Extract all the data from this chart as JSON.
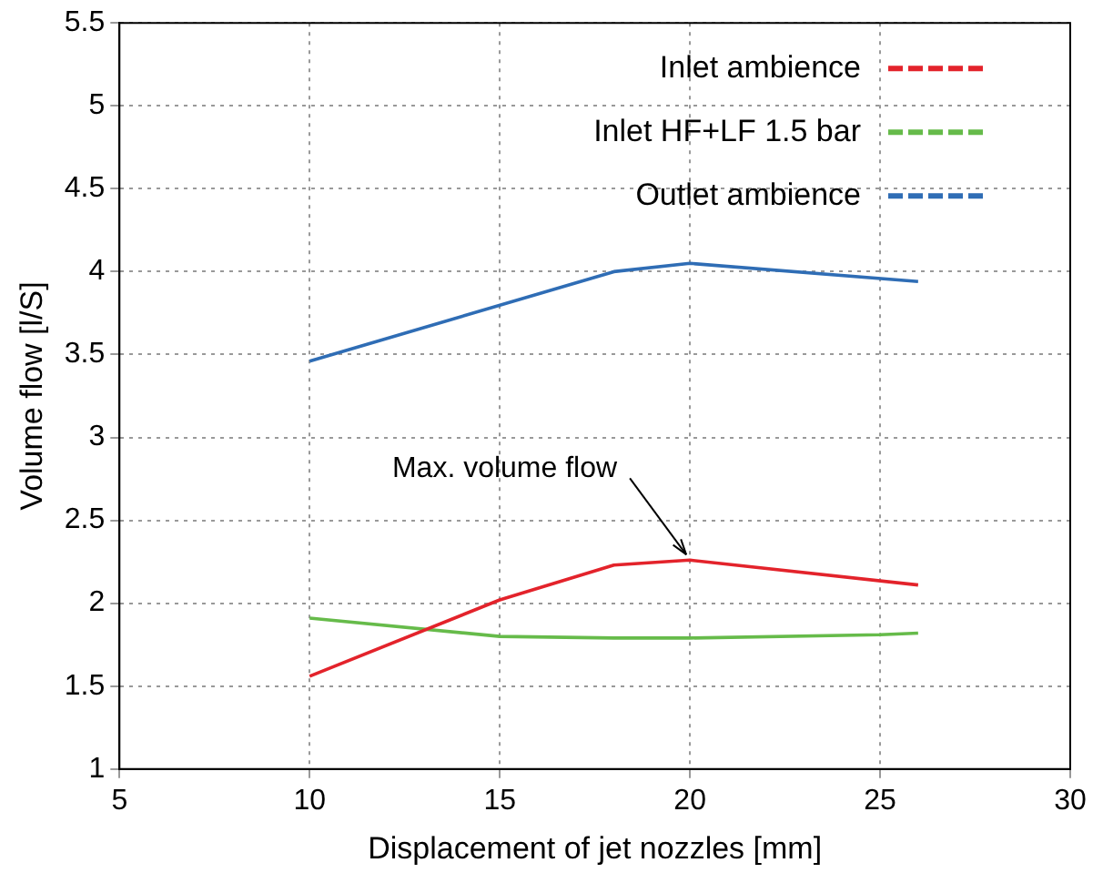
{
  "chart_data": {
    "type": "line",
    "xlabel": "Displacement of jet nozzles [mm]",
    "ylabel": "Volume flow [l/S]",
    "xlim": [
      5,
      30
    ],
    "xticks": [
      5,
      10,
      15,
      20,
      25,
      30
    ],
    "ylim": [
      1,
      5.5
    ],
    "yticks": [
      1,
      1.5,
      2,
      2.5,
      3,
      3.5,
      4,
      4.5,
      5,
      5.5
    ],
    "grid": true,
    "legend": "top right",
    "marker": "none",
    "line_style": "solid",
    "annotations": [
      {
        "text": "Max. volume flow",
        "x": 20,
        "y": 2.26
      }
    ],
    "series": [
      {
        "name": "Inlet ambience",
        "color": "#e3232b",
        "x": [
          10,
          15,
          18,
          20,
          26
        ],
        "values": [
          1.56,
          2.02,
          2.23,
          2.26,
          2.11
        ]
      },
      {
        "name": "Inlet HF+LF 1.5 bar",
        "color": "#66bb4a",
        "x": [
          10,
          15,
          18,
          20,
          25,
          26
        ],
        "values": [
          1.91,
          1.8,
          1.79,
          1.79,
          1.81,
          1.82
        ]
      },
      {
        "name": "Outlet ambience",
        "color": "#2f6db5",
        "x": [
          10,
          18,
          20,
          26
        ],
        "values": [
          3.46,
          4.0,
          4.05,
          3.94
        ]
      }
    ]
  }
}
